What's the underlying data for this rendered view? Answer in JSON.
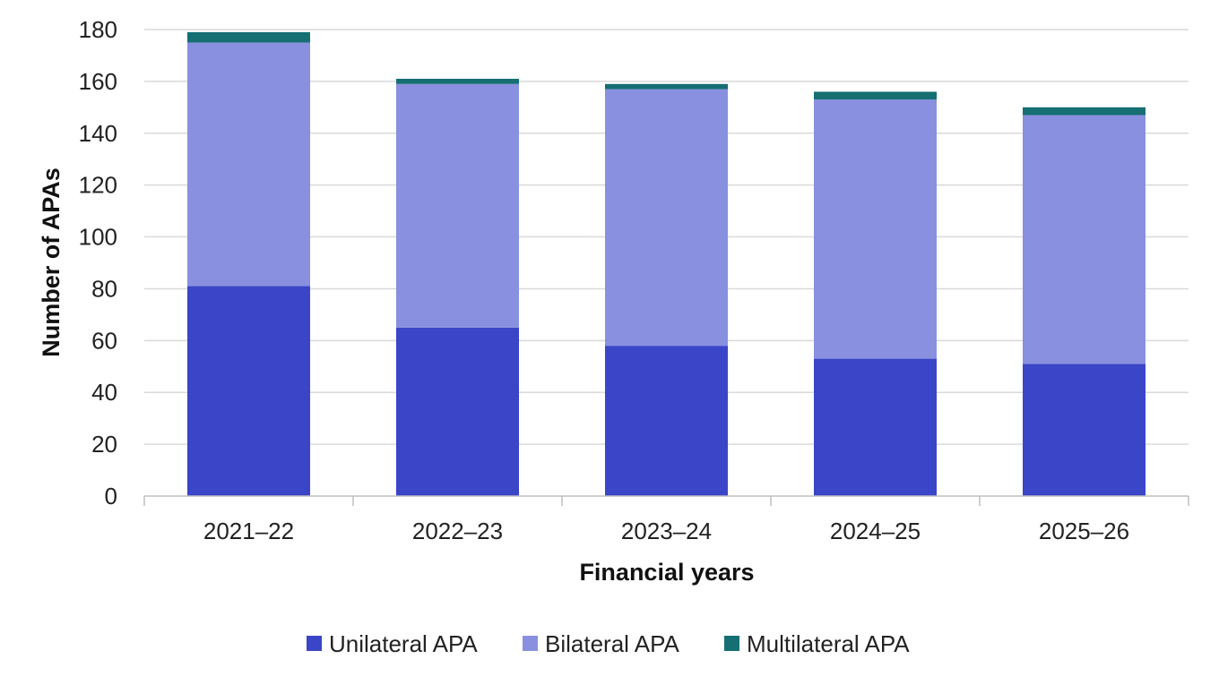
{
  "chart_data": {
    "type": "bar",
    "stacked": true,
    "title": "",
    "xlabel": "Financial years",
    "ylabel": "Number of APAs",
    "ylim": [
      0,
      180
    ],
    "yticks": [
      "0",
      "20",
      "40",
      "60",
      "80",
      "100",
      "120",
      "140",
      "160",
      "180"
    ],
    "grid": true,
    "legend_position": "bottom",
    "categories": [
      "2021–22",
      "2022–23",
      "2023–24",
      "2024–25",
      "2025–26"
    ],
    "series": [
      {
        "name": "Unilateral APA",
        "color": "#3a45c8",
        "values": [
          81,
          65,
          58,
          53,
          51
        ]
      },
      {
        "name": "Bilateral APA",
        "color": "#8990df",
        "values": [
          94,
          94,
          99,
          100,
          96
        ]
      },
      {
        "name": "Multilateral APA",
        "color": "#156f73",
        "values": [
          4,
          2,
          2,
          3,
          3
        ]
      }
    ]
  }
}
